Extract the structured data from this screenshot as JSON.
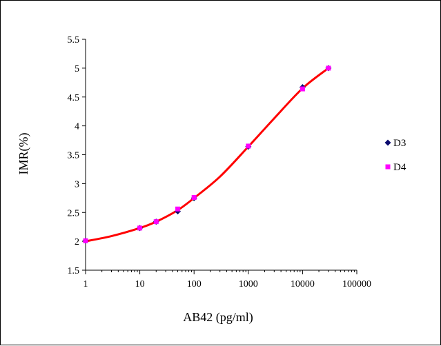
{
  "chart_data": {
    "type": "scatter",
    "title": "",
    "xlabel": "AB42 (pg/ml)",
    "ylabel": "IMR(%)",
    "xscale": "log",
    "xlim": [
      1,
      100000
    ],
    "ylim": [
      1.5,
      5.5
    ],
    "x_ticks": [
      "1",
      "10",
      "100",
      "1000",
      "10000",
      "100000"
    ],
    "y_ticks": [
      "1.5",
      "2",
      "2.5",
      "3",
      "3.5",
      "4",
      "4.5",
      "5",
      "5.5"
    ],
    "grid": false,
    "legend_position": "right",
    "series": [
      {
        "name": "D3",
        "marker": "diamond",
        "color": "#0a0a6e",
        "points": [
          {
            "x": 1,
            "y": 2.01
          },
          {
            "x": 10,
            "y": 2.23
          },
          {
            "x": 20,
            "y": 2.34
          },
          {
            "x": 50,
            "y": 2.52
          },
          {
            "x": 100,
            "y": 2.75
          },
          {
            "x": 1000,
            "y": 3.64
          },
          {
            "x": 10000,
            "y": 4.67
          },
          {
            "x": 30000,
            "y": 5.0
          }
        ]
      },
      {
        "name": "D4",
        "marker": "square",
        "color": "#ff00ff",
        "points": [
          {
            "x": 1,
            "y": 2.01
          },
          {
            "x": 10,
            "y": 2.23
          },
          {
            "x": 20,
            "y": 2.34
          },
          {
            "x": 50,
            "y": 2.56
          },
          {
            "x": 100,
            "y": 2.76
          },
          {
            "x": 1000,
            "y": 3.65
          },
          {
            "x": 10000,
            "y": 4.64
          },
          {
            "x": 30000,
            "y": 5.0
          }
        ]
      }
    ],
    "fit_curve": {
      "color": "#ff0000",
      "points": [
        {
          "x": 1,
          "y": 2.0
        },
        {
          "x": 3,
          "y": 2.09
        },
        {
          "x": 10,
          "y": 2.23
        },
        {
          "x": 20,
          "y": 2.34
        },
        {
          "x": 50,
          "y": 2.54
        },
        {
          "x": 100,
          "y": 2.75
        },
        {
          "x": 300,
          "y": 3.12
        },
        {
          "x": 1000,
          "y": 3.64
        },
        {
          "x": 3000,
          "y": 4.13
        },
        {
          "x": 10000,
          "y": 4.65
        },
        {
          "x": 30000,
          "y": 5.0
        }
      ]
    }
  }
}
